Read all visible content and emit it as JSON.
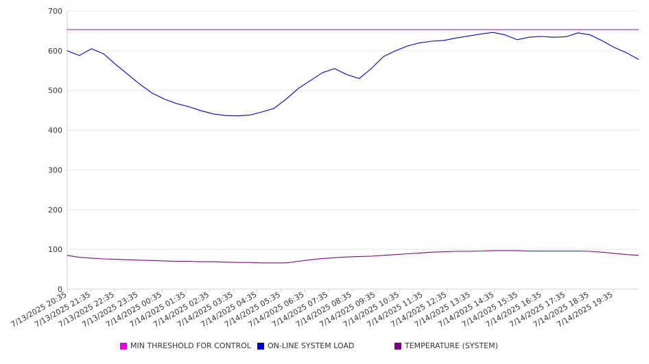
{
  "colors": {
    "min_threshold": "#e000e0",
    "online_load": "#0000cc",
    "temperature": "#800080",
    "grid": "#e6e6e6",
    "axis": "#cccccc",
    "text": "#333333"
  },
  "legend": {
    "min_threshold": "MIN THRESHOLD FOR CONTROL",
    "online_load": "ON-LINE SYSTEM LOAD",
    "temperature": "TEMPERATURE (SYSTEM)"
  },
  "chart_data": {
    "type": "line",
    "title": "",
    "xlabel": "",
    "ylabel": "",
    "ylim": [
      0,
      700
    ],
    "yticks": [
      0,
      100,
      200,
      300,
      400,
      500,
      600,
      700
    ],
    "grid": "horizontal",
    "legend_position": "bottom",
    "x_tick_labels": [
      "7/13/2025 20:35",
      "7/13/2025 21:35",
      "7/13/2025 22:35",
      "7/13/2025 23:35",
      "7/14/2025 00:35",
      "7/14/2025 01:35",
      "7/14/2025 02:35",
      "7/14/2025 03:35",
      "7/14/2025 04:35",
      "7/14/2025 05:35",
      "7/14/2025 06:35",
      "7/14/2025 07:35",
      "7/14/2025 08:35",
      "7/14/2025 09:35",
      "7/14/2025 10:35",
      "7/14/2025 11:35",
      "7/14/2025 12:35",
      "7/14/2025 13:35",
      "7/14/2025 14:35",
      "7/14/2025 15:35",
      "7/14/2025 16:35",
      "7/14/2025 17:35",
      "7/14/2025 18:35",
      "7/14/2025 19:35"
    ],
    "x": [
      "7/13/2025 20:35",
      "7/13/2025 21:05",
      "7/13/2025 21:35",
      "7/13/2025 22:05",
      "7/13/2025 22:35",
      "7/13/2025 23:05",
      "7/13/2025 23:35",
      "7/14/2025 00:05",
      "7/14/2025 00:35",
      "7/14/2025 01:05",
      "7/14/2025 01:35",
      "7/14/2025 02:05",
      "7/14/2025 02:35",
      "7/14/2025 03:05",
      "7/14/2025 03:35",
      "7/14/2025 04:05",
      "7/14/2025 04:35",
      "7/14/2025 05:05",
      "7/14/2025 05:35",
      "7/14/2025 06:05",
      "7/14/2025 06:35",
      "7/14/2025 07:05",
      "7/14/2025 07:35",
      "7/14/2025 08:05",
      "7/14/2025 08:35",
      "7/14/2025 09:05",
      "7/14/2025 09:35",
      "7/14/2025 10:05",
      "7/14/2025 10:35",
      "7/14/2025 11:05",
      "7/14/2025 11:35",
      "7/14/2025 12:05",
      "7/14/2025 12:35",
      "7/14/2025 13:05",
      "7/14/2025 13:35",
      "7/14/2025 14:05",
      "7/14/2025 14:35",
      "7/14/2025 15:05",
      "7/14/2025 15:35",
      "7/14/2025 16:05",
      "7/14/2025 16:35",
      "7/14/2025 17:05",
      "7/14/2025 17:35",
      "7/14/2025 18:05",
      "7/14/2025 18:35",
      "7/14/2025 19:05",
      "7/14/2025 19:35",
      "7/14/2025 20:05"
    ],
    "series": [
      {
        "name": "MIN THRESHOLD FOR CONTROL",
        "color": "#e000e0",
        "values": [
          653,
          653,
          653,
          653,
          653,
          653,
          653,
          653,
          653,
          653,
          653,
          653,
          653,
          653,
          653,
          653,
          653,
          653,
          653,
          653,
          653,
          653,
          653,
          653,
          653,
          653,
          653,
          653,
          653,
          653,
          653,
          653,
          653,
          653,
          653,
          653,
          653,
          653,
          653,
          653,
          653,
          653,
          653,
          653,
          653,
          653,
          653,
          653
        ]
      },
      {
        "name": "ON-LINE SYSTEM LOAD",
        "color": "#0000cc",
        "values": [
          600,
          588,
          605,
          592,
          565,
          540,
          515,
          493,
          478,
          467,
          459,
          449,
          441,
          437,
          436,
          438,
          446,
          455,
          478,
          505,
          525,
          545,
          555,
          540,
          530,
          555,
          585,
          600,
          612,
          620,
          624,
          626,
          632,
          637,
          642,
          646,
          640,
          628,
          634,
          636,
          634,
          635,
          645,
          640,
          625,
          608,
          595,
          578
        ]
      },
      {
        "name": "TEMPERATURE (SYSTEM)",
        "color": "#800080",
        "values": [
          85,
          80,
          78,
          76,
          75,
          74,
          73,
          72,
          71,
          70,
          70,
          69,
          69,
          68,
          67,
          67,
          66,
          66,
          66,
          70,
          74,
          77,
          79,
          81,
          82,
          83,
          85,
          87,
          89,
          91,
          93,
          94,
          95,
          95,
          96,
          97,
          97,
          97,
          96,
          96,
          96,
          96,
          96,
          95,
          93,
          90,
          87,
          85
        ]
      }
    ]
  }
}
